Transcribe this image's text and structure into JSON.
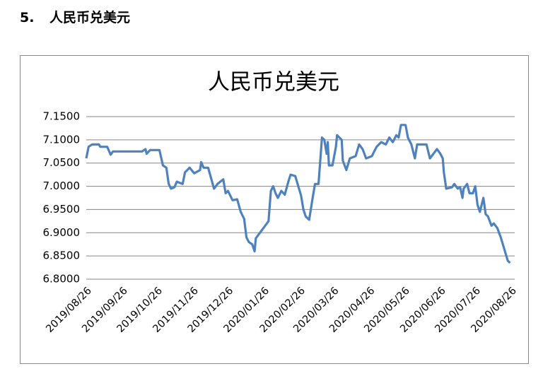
{
  "heading": {
    "number": "5.",
    "title": "人民币兑美元"
  },
  "chart_data": {
    "type": "line",
    "title": "人民币兑美元",
    "x": [
      "2019/08/26",
      "2019/08/28",
      "2019/08/31",
      "2019/09/06",
      "2019/09/07",
      "2019/09/13",
      "2019/09/16",
      "2019/09/18",
      "2019/10/13",
      "2019/10/16",
      "2019/10/17",
      "2019/10/20",
      "2019/10/28",
      "2019/10/31",
      "2019/11/03",
      "2019/11/05",
      "2019/11/07",
      "2019/11/10",
      "2019/11/12",
      "2019/11/17",
      "2019/11/19",
      "2019/11/23",
      "2019/11/27",
      "2019/12/02",
      "2019/12/03",
      "2019/12/05",
      "2019/12/09",
      "2019/12/14",
      "2019/12/17",
      "2019/12/22",
      "2019/12/24",
      "2019/12/26",
      "2019/12/30",
      "2020/01/03",
      "2020/01/06",
      "2020/01/09",
      "2020/01/11",
      "2020/01/13",
      "2020/01/16",
      "2020/01/18",
      "2020/01/19",
      "2020/01/30",
      "2020/02/01",
      "2020/02/03",
      "2020/02/05",
      "2020/02/07",
      "2020/02/10",
      "2020/02/13",
      "2020/02/16",
      "2020/02/18",
      "2020/02/22",
      "2020/02/27",
      "2020/02/29",
      "2020/03/02",
      "2020/03/05",
      "2020/03/08",
      "2020/03/10",
      "2020/03/13",
      "2020/03/16",
      "2020/03/18",
      "2020/03/20",
      "2020/03/21",
      "2020/03/22",
      "2020/03/25",
      "2020/03/28",
      "2020/03/29",
      "2020/04/02",
      "2020/04/03",
      "2020/04/06",
      "2020/04/09",
      "2020/04/14",
      "2020/04/17",
      "2020/04/20",
      "2020/04/23",
      "2020/04/28",
      "2020/05/02",
      "2020/05/06",
      "2020/05/10",
      "2020/05/13",
      "2020/05/16",
      "2020/05/19",
      "2020/05/21",
      "2020/05/23",
      "2020/05/27",
      "2020/05/29",
      "2020/06/01",
      "2020/06/04",
      "2020/06/06",
      "2020/06/14",
      "2020/06/17",
      "2020/06/20",
      "2020/06/23",
      "2020/06/26",
      "2020/06/28",
      "2020/06/29",
      "2020/07/01",
      "2020/07/06",
      "2020/07/08",
      "2020/07/11",
      "2020/07/13",
      "2020/07/15",
      "2020/07/16",
      "2020/07/19",
      "2020/07/21",
      "2020/07/24",
      "2020/07/26",
      "2020/07/28",
      "2020/07/30",
      "2020/08/02",
      "2020/08/04",
      "2020/08/06",
      "2020/08/09",
      "2020/08/11",
      "2020/08/14",
      "2020/08/17",
      "2020/08/20",
      "2020/08/23",
      "2020/08/25"
    ],
    "series": [
      {
        "name": "人民币兑美元",
        "color": "#4f81bd",
        "values": [
          7.06,
          7.085,
          7.09,
          7.09,
          7.085,
          7.085,
          7.068,
          7.075,
          7.075,
          7.08,
          7.07,
          7.078,
          7.078,
          7.045,
          7.04,
          7.005,
          6.995,
          6.998,
          7.01,
          7.005,
          7.03,
          7.04,
          7.028,
          7.035,
          7.052,
          7.04,
          7.04,
          6.995,
          7.005,
          7.015,
          6.985,
          6.99,
          6.97,
          6.972,
          6.945,
          6.93,
          6.89,
          6.88,
          6.875,
          6.86,
          6.888,
          6.925,
          6.99,
          7.0,
          6.985,
          6.975,
          6.99,
          6.982,
          7.01,
          7.025,
          7.022,
          6.98,
          6.95,
          6.935,
          6.928,
          6.975,
          7.005,
          7.005,
          7.105,
          7.1,
          7.07,
          7.095,
          7.045,
          7.045,
          7.085,
          7.11,
          7.1,
          7.055,
          7.035,
          7.06,
          7.065,
          7.09,
          7.08,
          7.06,
          7.065,
          7.085,
          7.095,
          7.09,
          7.105,
          7.095,
          7.11,
          7.105,
          7.132,
          7.132,
          7.105,
          7.09,
          7.06,
          7.09,
          7.09,
          7.06,
          7.07,
          7.08,
          7.07,
          7.06,
          7.03,
          6.995,
          6.998,
          7.005,
          6.995,
          6.998,
          6.975,
          6.995,
          7.005,
          6.985,
          6.985,
          7.0,
          6.96,
          6.945,
          6.975,
          6.94,
          6.935,
          6.915,
          6.92,
          6.91,
          6.89,
          6.865,
          6.84,
          6.835
        ]
      }
    ],
    "xlim": [
      "2019/08/26",
      "2020/08/29"
    ],
    "xticks": [
      "2019/08/26",
      "2019/09/26",
      "2019/10/26",
      "2019/11/26",
      "2019/12/26",
      "2020/01/26",
      "2020/02/26",
      "2020/03/26",
      "2020/04/26",
      "2020/05/26",
      "2020/06/26",
      "2020/07/26",
      "2020/08/26"
    ],
    "ylim": [
      6.8,
      7.15
    ],
    "yticks": [
      {
        "value": 6.8,
        "label": "6.8000"
      },
      {
        "value": 6.85,
        "label": "6.8500"
      },
      {
        "value": 6.9,
        "label": "6.9000"
      },
      {
        "value": 6.95,
        "label": "6.9500"
      },
      {
        "value": 7.0,
        "label": "7.0000"
      },
      {
        "value": 7.05,
        "label": "7.0500"
      },
      {
        "value": 7.1,
        "label": "7.1000"
      },
      {
        "value": 7.15,
        "label": "7.1500"
      }
    ],
    "grid": true
  }
}
